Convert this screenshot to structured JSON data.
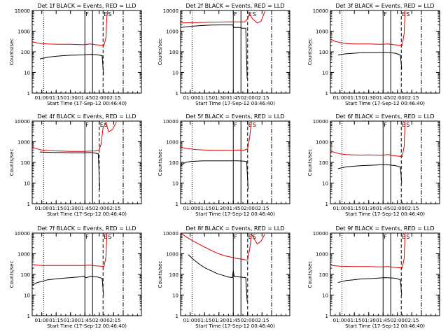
{
  "colors": {
    "events": "#000000",
    "lld": "#dd0000",
    "axes": "#000000",
    "background": "#ffffff"
  },
  "common": {
    "ylabel": "Counts/sec",
    "yticks": [
      {
        "value": 1,
        "label": "1"
      },
      {
        "value": 10,
        "label": "10"
      },
      {
        "value": 100,
        "label": "100"
      },
      {
        "value": 1000,
        "label": "1000"
      },
      {
        "value": 10000,
        "label": "10000"
      }
    ],
    "ylim": [
      1,
      10000
    ],
    "yscale": "log",
    "xlabel": "Start Time (17-Sep-12 00:46:40)",
    "flag_F": "F",
    "flag_E": "E",
    "flag_S": "S"
  },
  "chart_data": [
    {
      "type": "line",
      "detector": "1f",
      "title": "Det 1f BLACK = Events, RED = LLD",
      "xlim_min": [
        -10,
        104
      ],
      "xticks": [
        {
          "min": 0,
          "label": "01:00"
        },
        {
          "min": 15,
          "label": "01:15"
        },
        {
          "min": 30,
          "label": "01:30"
        },
        {
          "min": 45,
          "label": "01:45"
        },
        {
          "min": 60,
          "label": "02:00"
        },
        {
          "min": 75,
          "label": "02:15"
        }
      ],
      "markers": {
        "dotted": 2,
        "solid": [
          45,
          53
        ],
        "dashed": 64,
        "dashdot": 85
      },
      "series": [
        {
          "name": "Events",
          "x": [
            -2,
            6,
            14,
            22,
            30,
            38,
            44,
            46,
            52,
            58,
            63,
            64.5
          ],
          "y": [
            45,
            55,
            60,
            65,
            68,
            70,
            72,
            73,
            75,
            72,
            65,
            8
          ]
        },
        {
          "name": "LLD",
          "x": [
            -10,
            -5,
            0,
            6,
            14,
            22,
            30,
            38,
            44,
            50,
            56,
            62,
            65,
            67,
            68,
            69
          ],
          "y": [
            300,
            270,
            250,
            240,
            235,
            230,
            230,
            225,
            220,
            240,
            220,
            210,
            200,
            500,
            5000,
            10000
          ]
        }
      ]
    },
    {
      "type": "line",
      "detector": "2f",
      "title": "Det 2f BLACK = Events, RED = LLD",
      "xlim_min": [
        -10,
        104
      ],
      "xticks": [
        {
          "min": 0,
          "label": "01:00"
        },
        {
          "min": 15,
          "label": "01:15"
        },
        {
          "min": 30,
          "label": "01:30"
        },
        {
          "min": 45,
          "label": "01:45"
        },
        {
          "min": 60,
          "label": "02:00"
        },
        {
          "min": 75,
          "label": "02:15"
        }
      ],
      "markers": {
        "dotted": 2,
        "solid": [
          45,
          53
        ],
        "dashed": 60,
        "dashdot": 85
      },
      "series": [
        {
          "name": "Events",
          "x": [
            -10,
            0,
            10,
            20,
            30,
            40,
            44.5,
            45.5,
            53,
            53.5,
            58,
            59.5
          ],
          "y": [
            1500,
            1700,
            1850,
            1950,
            2000,
            2000,
            2000,
            1500,
            1500,
            1400,
            1400,
            5
          ]
        },
        {
          "name": "LLD",
          "x": [
            -10,
            0,
            10,
            20,
            30,
            40,
            50,
            57,
            60,
            62,
            65,
            70,
            74,
            78
          ],
          "y": [
            2500,
            2550,
            2600,
            2700,
            2750,
            2800,
            2800,
            2800,
            4000,
            7000,
            4000,
            2500,
            3000,
            9000
          ]
        }
      ]
    },
    {
      "type": "line",
      "detector": "3f",
      "title": "Det 3f BLACK = Events, RED = LLD",
      "xlim_min": [
        -10,
        104
      ],
      "xticks": [
        {
          "min": 0,
          "label": "01:00"
        },
        {
          "min": 15,
          "label": "01:15"
        },
        {
          "min": 30,
          "label": "01:30"
        },
        {
          "min": 45,
          "label": "01:45"
        },
        {
          "min": 60,
          "label": "02:00"
        },
        {
          "min": 75,
          "label": "02:15"
        }
      ],
      "markers": {
        "dotted": 2,
        "solid": [
          45,
          53
        ],
        "dashed": 64,
        "dashdot": 85
      },
      "series": [
        {
          "name": "Events",
          "x": [
            -2,
            6,
            14,
            22,
            30,
            38,
            44,
            46,
            52,
            58,
            63,
            64.5
          ],
          "y": [
            70,
            80,
            85,
            90,
            90,
            92,
            93,
            95,
            92,
            85,
            70,
            15
          ]
        },
        {
          "name": "LLD",
          "x": [
            -10,
            -5,
            0,
            6,
            14,
            22,
            30,
            38,
            44,
            50,
            56,
            62,
            65,
            67,
            68
          ],
          "y": [
            400,
            320,
            280,
            250,
            240,
            240,
            240,
            235,
            230,
            240,
            220,
            210,
            200,
            800,
            10000
          ]
        }
      ]
    },
    {
      "type": "line",
      "detector": "4f",
      "title": "Det 4f BLACK = Events, RED = LLD",
      "xlim_min": [
        -10,
        104
      ],
      "xticks": [
        {
          "min": 0,
          "label": "01:00"
        },
        {
          "min": 15,
          "label": "01:15"
        },
        {
          "min": 30,
          "label": "01:30"
        },
        {
          "min": 45,
          "label": "01:45"
        },
        {
          "min": 60,
          "label": "02:00"
        },
        {
          "min": 75,
          "label": "02:15"
        }
      ],
      "markers": {
        "dotted": 2,
        "solid": [
          45,
          53
        ],
        "dashed": 60,
        "dashdot": 85
      },
      "series": [
        {
          "name": "Events",
          "x": [
            -2,
            6,
            14,
            22,
            30,
            38,
            44,
            50,
            56,
            59,
            60.5
          ],
          "y": [
            320,
            310,
            300,
            300,
            290,
            290,
            290,
            300,
            280,
            260,
            5
          ]
        },
        {
          "name": "LLD",
          "x": [
            -10,
            -5,
            0,
            6,
            14,
            22,
            30,
            38,
            44,
            50,
            56,
            60,
            62,
            64,
            67,
            70,
            74,
            78
          ],
          "y": [
            550,
            450,
            400,
            380,
            360,
            350,
            340,
            340,
            340,
            350,
            360,
            400,
            800,
            5000,
            8000,
            3000,
            4000,
            9000
          ]
        }
      ]
    },
    {
      "type": "line",
      "detector": "5f",
      "title": "Det 5f BLACK = Events, RED = LLD",
      "xlim_min": [
        -10,
        104
      ],
      "xticks": [
        {
          "min": 0,
          "label": "01:00"
        },
        {
          "min": 15,
          "label": "01:15"
        },
        {
          "min": 30,
          "label": "01:30"
        },
        {
          "min": 45,
          "label": "01:45"
        },
        {
          "min": 60,
          "label": "02:00"
        },
        {
          "min": 75,
          "label": "02:15"
        }
      ],
      "markers": {
        "dotted": 2,
        "solid": [
          45,
          53
        ],
        "dashed": 60,
        "dashdot": 85
      },
      "series": [
        {
          "name": "Events",
          "x": [
            -10,
            -5,
            0,
            6,
            14,
            22,
            30,
            38,
            44,
            50,
            56,
            59,
            60.5
          ],
          "y": [
            70,
            100,
            110,
            115,
            120,
            120,
            120,
            120,
            120,
            120,
            115,
            110,
            5
          ]
        },
        {
          "name": "LLD",
          "x": [
            -10,
            -5,
            0,
            6,
            14,
            22,
            30,
            38,
            44,
            50,
            56,
            60,
            62,
            64
          ],
          "y": [
            550,
            480,
            450,
            420,
            400,
            390,
            390,
            390,
            380,
            400,
            390,
            450,
            1500,
            10000
          ]
        }
      ]
    },
    {
      "type": "line",
      "detector": "6f",
      "title": "Det 6f BLACK = Events, RED = LLD",
      "xlim_min": [
        -10,
        104
      ],
      "xticks": [
        {
          "min": 0,
          "label": "01:00"
        },
        {
          "min": 15,
          "label": "01:15"
        },
        {
          "min": 30,
          "label": "01:30"
        },
        {
          "min": 45,
          "label": "01:45"
        },
        {
          "min": 60,
          "label": "02:00"
        },
        {
          "min": 75,
          "label": "02:15"
        }
      ],
      "markers": {
        "dotted": 2,
        "solid": [
          45,
          53
        ],
        "dashed": 64,
        "dashdot": 85
      },
      "series": [
        {
          "name": "Events",
          "x": [
            -2,
            6,
            14,
            22,
            30,
            38,
            44,
            46,
            52,
            58,
            63,
            64.5
          ],
          "y": [
            50,
            60,
            65,
            70,
            72,
            75,
            78,
            80,
            75,
            70,
            60,
            10
          ]
        },
        {
          "name": "LLD",
          "x": [
            -10,
            -5,
            0,
            6,
            14,
            22,
            30,
            38,
            44,
            50,
            56,
            62,
            65,
            67,
            68
          ],
          "y": [
            350,
            300,
            260,
            240,
            230,
            225,
            230,
            225,
            220,
            240,
            210,
            200,
            190,
            600,
            10000
          ]
        }
      ]
    },
    {
      "type": "line",
      "detector": "7f",
      "title": "Det 7f BLACK = Events, RED = LLD",
      "xlim_min": [
        -10,
        104
      ],
      "xticks": [
        {
          "min": 0,
          "label": "01:00"
        },
        {
          "min": 15,
          "label": "01:15"
        },
        {
          "min": 30,
          "label": "01:30"
        },
        {
          "min": 45,
          "label": "01:45"
        },
        {
          "min": 60,
          "label": "02:00"
        },
        {
          "min": 75,
          "label": "02:15"
        }
      ],
      "markers": {
        "dotted": 2,
        "solid": [
          45,
          53
        ],
        "dashed": 64,
        "dashdot": 85
      },
      "series": [
        {
          "name": "Events",
          "x": [
            -10,
            -5,
            0,
            6,
            14,
            22,
            30,
            38,
            44,
            46,
            52,
            58,
            63,
            64.5
          ],
          "y": [
            30,
            40,
            45,
            55,
            60,
            65,
            70,
            75,
            80,
            70,
            80,
            75,
            65,
            10
          ]
        },
        {
          "name": "LLD",
          "x": [
            -10,
            -5,
            0,
            6,
            14,
            22,
            30,
            38,
            44,
            50,
            56,
            62,
            65,
            67,
            68
          ],
          "y": [
            300,
            280,
            270,
            270,
            270,
            270,
            270,
            270,
            270,
            280,
            260,
            250,
            240,
            700,
            10000
          ]
        }
      ]
    },
    {
      "type": "line",
      "detector": "8f",
      "title": "Det 8f BLACK = Events, RED = LLD",
      "xlim_min": [
        -10,
        104
      ],
      "xticks": [
        {
          "min": 0,
          "label": "01:00"
        },
        {
          "min": 15,
          "label": "01:15"
        },
        {
          "min": 30,
          "label": "01:30"
        },
        {
          "min": 45,
          "label": "01:45"
        },
        {
          "min": 60,
          "label": "02:00"
        },
        {
          "min": 75,
          "label": "02:15"
        }
      ],
      "markers": {
        "dotted": 2,
        "solid": [
          45,
          53
        ],
        "dashed": 60,
        "dashdot": 85
      },
      "series": [
        {
          "name": "Events",
          "x": [
            -2,
            4,
            10,
            16,
            22,
            28,
            34,
            40,
            44,
            45,
            46,
            52,
            58,
            59.5
          ],
          "y": [
            900,
            500,
            300,
            200,
            150,
            110,
            90,
            75,
            70,
            150,
            80,
            75,
            70,
            5
          ]
        },
        {
          "name": "LLD",
          "x": [
            -10,
            -5,
            0,
            6,
            12,
            18,
            24,
            30,
            36,
            42,
            48,
            54,
            58,
            60,
            62,
            64,
            67,
            70,
            74,
            78
          ],
          "y": [
            10000,
            7000,
            5000,
            3500,
            2500,
            1800,
            1300,
            1000,
            800,
            700,
            600,
            550,
            500,
            500,
            1500,
            9000,
            5000,
            3000,
            4000,
            9000
          ]
        }
      ]
    },
    {
      "type": "line",
      "detector": "9f",
      "title": "Det 9f BLACK = Events, RED = LLD",
      "xlim_min": [
        -10,
        104
      ],
      "xticks": [
        {
          "min": 0,
          "label": "01:00"
        },
        {
          "min": 15,
          "label": "01:15"
        },
        {
          "min": 30,
          "label": "01:30"
        },
        {
          "min": 45,
          "label": "01:45"
        },
        {
          "min": 60,
          "label": "02:00"
        },
        {
          "min": 75,
          "label": "02:15"
        }
      ],
      "markers": {
        "dotted": 2,
        "solid": [
          45,
          53
        ],
        "dashed": 64,
        "dashdot": 85
      },
      "series": [
        {
          "name": "Events",
          "x": [
            -2,
            6,
            14,
            22,
            30,
            38,
            44,
            46,
            52,
            58,
            63,
            64.5
          ],
          "y": [
            40,
            50,
            55,
            60,
            62,
            65,
            68,
            70,
            68,
            65,
            55,
            10
          ]
        },
        {
          "name": "LLD",
          "x": [
            -10,
            -5,
            0,
            6,
            14,
            22,
            30,
            38,
            44,
            50,
            56,
            62,
            65,
            67,
            68
          ],
          "y": [
            280,
            260,
            250,
            245,
            240,
            240,
            240,
            235,
            230,
            240,
            220,
            210,
            200,
            600,
            10000
          ]
        }
      ]
    }
  ]
}
